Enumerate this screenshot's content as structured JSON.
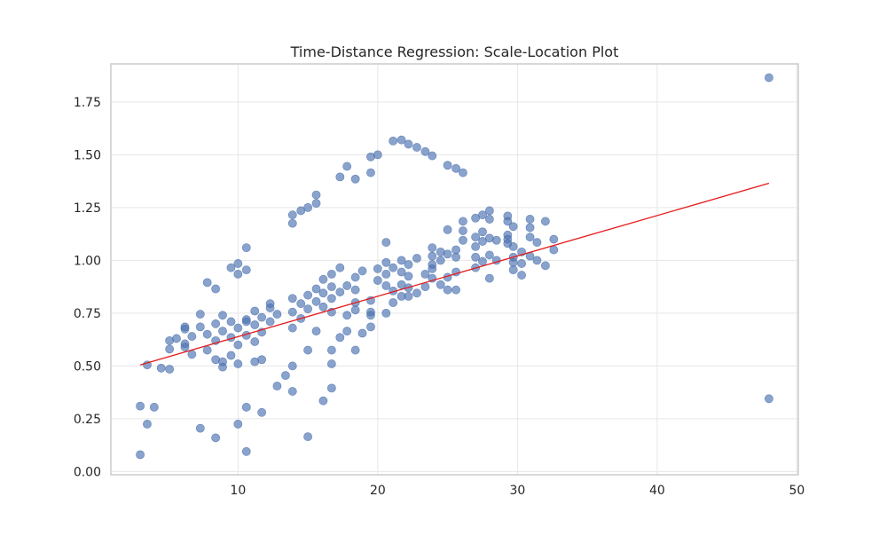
{
  "chart_data": {
    "type": "scatter",
    "title": "Time-Distance Regression: Scale-Location Plot",
    "xlabel": "",
    "ylabel": "",
    "xlim": [
      0.9,
      50.1
    ],
    "ylim": [
      -0.015,
      1.93
    ],
    "x_ticks": [
      10,
      20,
      30,
      40,
      50
    ],
    "x_tick_labels": [
      "10",
      "20",
      "30",
      "40",
      "50"
    ],
    "y_ticks": [
      0.0,
      0.25,
      0.5,
      0.75,
      1.0,
      1.25,
      1.5,
      1.75
    ],
    "y_tick_labels": [
      "0.00",
      "0.25",
      "0.50",
      "0.75",
      "1.00",
      "1.25",
      "1.50",
      "1.75"
    ],
    "grid": true,
    "colors": {
      "points": "#4c72b0",
      "trend_line": "#e41a1c",
      "grid": "#e6e6e6",
      "spine": "#cccccc",
      "text": "#262626"
    },
    "trend_line": {
      "x": [
        3.0,
        48.0
      ],
      "y": [
        0.505,
        1.365
      ]
    },
    "points": [
      [
        3.0,
        0.31
      ],
      [
        3.0,
        0.08
      ],
      [
        3.5,
        0.505
      ],
      [
        3.5,
        0.225
      ],
      [
        4.0,
        0.305
      ],
      [
        4.5,
        0.49
      ],
      [
        5.1,
        0.62
      ],
      [
        5.1,
        0.58
      ],
      [
        5.1,
        0.485
      ],
      [
        5.6,
        0.63
      ],
      [
        6.2,
        0.685
      ],
      [
        6.2,
        0.675
      ],
      [
        6.2,
        0.605
      ],
      [
        6.2,
        0.59
      ],
      [
        6.7,
        0.64
      ],
      [
        6.7,
        0.555
      ],
      [
        7.3,
        0.745
      ],
      [
        7.3,
        0.685
      ],
      [
        7.3,
        0.205
      ],
      [
        7.8,
        0.895
      ],
      [
        7.8,
        0.65
      ],
      [
        7.8,
        0.575
      ],
      [
        8.4,
        0.865
      ],
      [
        8.4,
        0.7
      ],
      [
        8.4,
        0.62
      ],
      [
        8.4,
        0.53
      ],
      [
        8.4,
        0.16
      ],
      [
        8.9,
        0.74
      ],
      [
        8.9,
        0.665
      ],
      [
        8.9,
        0.52
      ],
      [
        8.9,
        0.495
      ],
      [
        9.5,
        0.965
      ],
      [
        9.5,
        0.71
      ],
      [
        9.5,
        0.635
      ],
      [
        9.5,
        0.55
      ],
      [
        10.0,
        0.985
      ],
      [
        10.0,
        0.935
      ],
      [
        10.0,
        0.68
      ],
      [
        10.0,
        0.6
      ],
      [
        10.0,
        0.51
      ],
      [
        10.0,
        0.225
      ],
      [
        10.6,
        1.06
      ],
      [
        10.6,
        0.955
      ],
      [
        10.6,
        0.72
      ],
      [
        10.6,
        0.71
      ],
      [
        10.6,
        0.645
      ],
      [
        10.6,
        0.305
      ],
      [
        10.6,
        0.095
      ],
      [
        11.2,
        0.76
      ],
      [
        11.2,
        0.695
      ],
      [
        11.2,
        0.615
      ],
      [
        11.2,
        0.52
      ],
      [
        11.7,
        0.73
      ],
      [
        11.7,
        0.66
      ],
      [
        11.7,
        0.53
      ],
      [
        11.7,
        0.28
      ],
      [
        12.3,
        0.795
      ],
      [
        12.3,
        0.775
      ],
      [
        12.3,
        0.71
      ],
      [
        12.8,
        0.745
      ],
      [
        12.8,
        0.405
      ],
      [
        13.4,
        0.455
      ],
      [
        13.9,
        1.215
      ],
      [
        13.9,
        1.175
      ],
      [
        13.9,
        0.82
      ],
      [
        13.9,
        0.755
      ],
      [
        13.9,
        0.68
      ],
      [
        13.9,
        0.5
      ],
      [
        13.9,
        0.38
      ],
      [
        14.5,
        1.235
      ],
      [
        14.5,
        0.795
      ],
      [
        14.5,
        0.725
      ],
      [
        15.0,
        1.25
      ],
      [
        15.0,
        0.835
      ],
      [
        15.0,
        0.77
      ],
      [
        15.0,
        0.575
      ],
      [
        15.0,
        0.165
      ],
      [
        15.6,
        1.31
      ],
      [
        15.6,
        1.27
      ],
      [
        15.6,
        0.865
      ],
      [
        15.6,
        0.805
      ],
      [
        15.6,
        0.665
      ],
      [
        16.1,
        0.91
      ],
      [
        16.1,
        0.845
      ],
      [
        16.1,
        0.78
      ],
      [
        16.1,
        0.335
      ],
      [
        16.7,
        0.935
      ],
      [
        16.7,
        0.875
      ],
      [
        16.7,
        0.82
      ],
      [
        16.7,
        0.755
      ],
      [
        16.7,
        0.575
      ],
      [
        16.7,
        0.51
      ],
      [
        16.7,
        0.395
      ],
      [
        17.3,
        1.395
      ],
      [
        17.3,
        0.965
      ],
      [
        17.3,
        0.85
      ],
      [
        17.3,
        0.635
      ],
      [
        17.8,
        1.445
      ],
      [
        17.8,
        0.88
      ],
      [
        17.8,
        0.74
      ],
      [
        17.8,
        0.665
      ],
      [
        18.4,
        1.385
      ],
      [
        18.4,
        0.92
      ],
      [
        18.4,
        0.86
      ],
      [
        18.4,
        0.8
      ],
      [
        18.4,
        0.765
      ],
      [
        18.4,
        0.575
      ],
      [
        18.9,
        0.95
      ],
      [
        18.9,
        0.655
      ],
      [
        19.5,
        1.49
      ],
      [
        19.5,
        1.415
      ],
      [
        19.5,
        0.81
      ],
      [
        19.5,
        0.755
      ],
      [
        19.5,
        0.74
      ],
      [
        19.5,
        0.685
      ],
      [
        20.0,
        1.5
      ],
      [
        20.0,
        0.96
      ],
      [
        20.0,
        0.905
      ],
      [
        20.6,
        1.085
      ],
      [
        20.6,
        0.99
      ],
      [
        20.6,
        0.935
      ],
      [
        20.6,
        0.88
      ],
      [
        20.6,
        0.75
      ],
      [
        21.1,
        1.565
      ],
      [
        21.1,
        0.965
      ],
      [
        21.1,
        0.855
      ],
      [
        21.1,
        0.8
      ],
      [
        21.7,
        1.57
      ],
      [
        21.7,
        1.0
      ],
      [
        21.7,
        0.945
      ],
      [
        21.7,
        0.885
      ],
      [
        21.7,
        0.83
      ],
      [
        22.2,
        1.55
      ],
      [
        22.2,
        0.98
      ],
      [
        22.2,
        0.925
      ],
      [
        22.2,
        0.87
      ],
      [
        22.2,
        0.83
      ],
      [
        22.8,
        1.535
      ],
      [
        22.8,
        1.01
      ],
      [
        22.8,
        0.845
      ],
      [
        23.4,
        1.515
      ],
      [
        23.4,
        0.935
      ],
      [
        23.4,
        0.875
      ],
      [
        23.9,
        1.495
      ],
      [
        23.9,
        1.06
      ],
      [
        23.9,
        1.02
      ],
      [
        23.9,
        0.98
      ],
      [
        23.9,
        0.96
      ],
      [
        23.9,
        0.915
      ],
      [
        24.5,
        1.04
      ],
      [
        24.5,
        1.0
      ],
      [
        24.5,
        0.885
      ],
      [
        25.0,
        1.45
      ],
      [
        25.0,
        1.145
      ],
      [
        25.0,
        1.03
      ],
      [
        25.0,
        0.92
      ],
      [
        25.0,
        0.86
      ],
      [
        25.6,
        1.435
      ],
      [
        25.6,
        1.05
      ],
      [
        25.6,
        1.015
      ],
      [
        25.6,
        0.945
      ],
      [
        25.6,
        0.86
      ],
      [
        26.1,
        1.415
      ],
      [
        26.1,
        1.185
      ],
      [
        26.1,
        1.14
      ],
      [
        26.1,
        1.095
      ],
      [
        27.0,
        1.2
      ],
      [
        27.0,
        1.11
      ],
      [
        27.0,
        1.065
      ],
      [
        27.0,
        1.015
      ],
      [
        27.0,
        0.965
      ],
      [
        27.5,
        1.215
      ],
      [
        27.5,
        1.135
      ],
      [
        27.5,
        1.09
      ],
      [
        27.5,
        0.995
      ],
      [
        28.0,
        1.235
      ],
      [
        28.0,
        1.195
      ],
      [
        28.0,
        1.105
      ],
      [
        28.0,
        1.025
      ],
      [
        28.0,
        0.915
      ],
      [
        28.5,
        1.095
      ],
      [
        28.5,
        1.0
      ],
      [
        29.3,
        1.21
      ],
      [
        29.3,
        1.185
      ],
      [
        29.3,
        1.12
      ],
      [
        29.3,
        1.1
      ],
      [
        29.3,
        1.08
      ],
      [
        29.7,
        1.16
      ],
      [
        29.7,
        1.065
      ],
      [
        29.7,
        1.015
      ],
      [
        29.7,
        0.99
      ],
      [
        29.7,
        0.955
      ],
      [
        30.3,
        1.04
      ],
      [
        30.3,
        0.985
      ],
      [
        30.3,
        0.93
      ],
      [
        30.9,
        1.195
      ],
      [
        30.9,
        1.155
      ],
      [
        30.9,
        1.11
      ],
      [
        30.9,
        1.02
      ],
      [
        31.4,
        1.085
      ],
      [
        31.4,
        1.0
      ],
      [
        32.0,
        1.185
      ],
      [
        32.0,
        0.975
      ],
      [
        32.6,
        1.1
      ],
      [
        32.6,
        1.05
      ],
      [
        48.0,
        1.865
      ],
      [
        48.0,
        0.345
      ]
    ]
  }
}
